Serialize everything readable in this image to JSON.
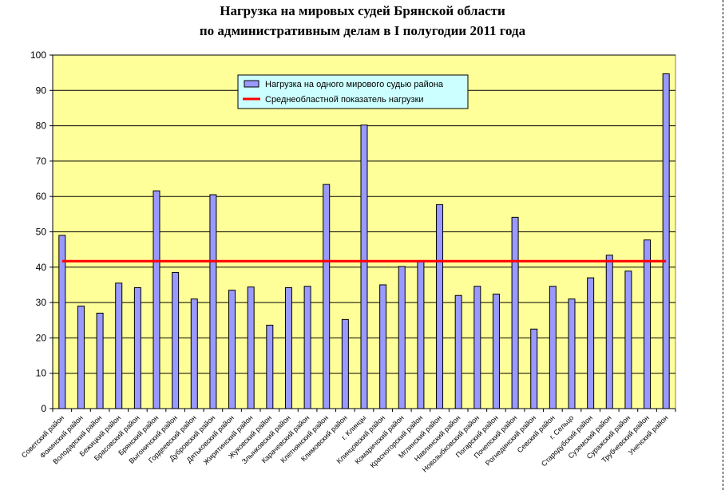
{
  "chart_data": {
    "type": "bar",
    "title": [
      "Нагрузка на мировых судей Брянской области",
      "по административным делам в I полугодии 2011 года"
    ],
    "xlabel": "",
    "ylabel": "",
    "ylim": [
      0,
      100
    ],
    "yticks": [
      0,
      10,
      20,
      30,
      40,
      50,
      60,
      70,
      80,
      90,
      100
    ],
    "grid": true,
    "legend_position": "top-center",
    "categories": [
      "Советский район",
      "Фокинский район",
      "Володарский район",
      "Бежицкий район",
      "Брасовский район",
      "Брянский район",
      "Выгоничский район",
      "Гордеевский район",
      "Дубровский район",
      "Дятьковский район",
      "Жирятинский район",
      "Жуковский район",
      "Злынковский район",
      "Карачевский район",
      "Клетнянский район",
      "Климовский район",
      "г. Клинцы",
      "Клинцовский район",
      "Комаричский район",
      "Красногорский район",
      "Мглинский район",
      "Навлинский район",
      "Новозыбковский район",
      "Погарский район",
      "Почепский район",
      "Рогнединский район",
      "Севский район",
      "г. Сельцо",
      "Стародубский район",
      "Суземский район",
      "Суражский район",
      "Трубчевский район",
      "Унечский район"
    ],
    "series": [
      {
        "name": "Нагрузка на одного мирового судью района",
        "color": "#9999ff",
        "values": [
          49,
          29,
          27,
          35.5,
          34.2,
          61.6,
          38.5,
          31,
          60.5,
          33.5,
          34.4,
          23.6,
          34.2,
          34.6,
          63.4,
          25.2,
          80.2,
          35,
          40.2,
          41.8,
          57.7,
          32,
          34.6,
          32.4,
          54.1,
          22.5,
          34.6,
          31,
          37,
          43.4,
          38.9,
          47.7,
          94.7
        ]
      },
      {
        "name": "Среднеобластной показатель нагрузки",
        "type": "line",
        "color": "#ff0000",
        "value": 41.7
      }
    ]
  },
  "colors": {
    "plot_background": "#ffff99",
    "bar_fill": "#9999ff",
    "average_line": "#ff0000",
    "legend_background": "#ccffff"
  }
}
